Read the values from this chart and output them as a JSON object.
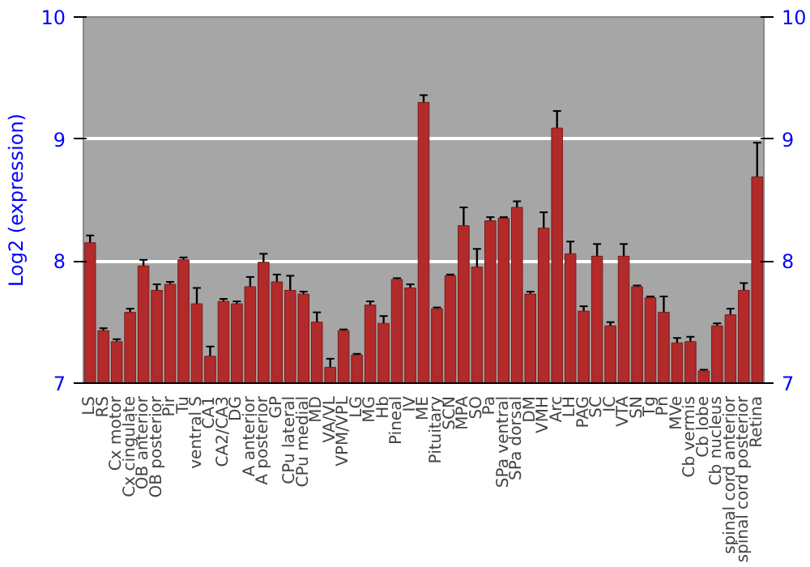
{
  "chart_data": {
    "type": "bar",
    "ylabel": "Log2 (expression)",
    "categories": [
      "LS",
      "RS",
      "Cx motor",
      "Cx cingulate",
      "OB anterior",
      "OB posterior",
      "Pir",
      "Tu",
      "ventral S",
      "CA1",
      "CA2/CA3",
      "DG",
      "A anterior",
      "A posterior",
      "GP",
      "CPu lateral",
      "CPu medial",
      "MD",
      "VA/VL",
      "VPM/VPL",
      "LG",
      "MG",
      "Hb",
      "Pineal",
      "IV",
      "ME",
      "Pituitary",
      "SCN",
      "MPA",
      "SO",
      "Pa",
      "SPa ventral",
      "SPa dorsal",
      "DM",
      "VMH",
      "Arc",
      "LH",
      "PAG",
      "SC",
      "IC",
      "VTA",
      "SN",
      "Tg",
      "Pn",
      "MVe",
      "Cb vermis",
      "Cb lobe",
      "Cb nucleus",
      "spinal cord anterior",
      "spinal cord posterior",
      "Retina"
    ],
    "values": [
      8.15,
      7.43,
      7.34,
      7.58,
      7.96,
      7.76,
      7.81,
      8.01,
      7.65,
      7.22,
      7.67,
      7.65,
      7.79,
      7.99,
      7.83,
      7.76,
      7.73,
      7.5,
      7.13,
      7.43,
      7.23,
      7.64,
      7.49,
      7.85,
      7.78,
      9.3,
      7.61,
      7.88,
      8.29,
      7.95,
      8.33,
      8.35,
      8.44,
      7.73,
      8.27,
      9.09,
      8.06,
      7.59,
      8.04,
      7.47,
      8.04,
      7.79,
      7.7,
      7.58,
      7.33,
      7.34,
      7.1,
      7.47,
      7.56,
      7.76,
      8.69
    ],
    "errors": [
      0.06,
      0.02,
      0.02,
      0.03,
      0.05,
      0.05,
      0.02,
      0.02,
      0.13,
      0.08,
      0.02,
      0.02,
      0.08,
      0.07,
      0.06,
      0.12,
      0.02,
      0.08,
      0.07,
      0.01,
      0.01,
      0.03,
      0.06,
      0.01,
      0.03,
      0.06,
      0.01,
      0.01,
      0.15,
      0.15,
      0.03,
      0.01,
      0.05,
      0.02,
      0.13,
      0.14,
      0.1,
      0.04,
      0.1,
      0.03,
      0.1,
      0.01,
      0.01,
      0.13,
      0.04,
      0.04,
      0.01,
      0.02,
      0.05,
      0.06,
      0.28
    ],
    "color": "#b22a2a",
    "ylim": [
      7,
      10
    ],
    "yticks": [
      7,
      8,
      9,
      10
    ],
    "y2lim": [
      7,
      10
    ],
    "y2ticks": [
      7,
      8,
      9,
      10
    ],
    "grid": "y"
  }
}
